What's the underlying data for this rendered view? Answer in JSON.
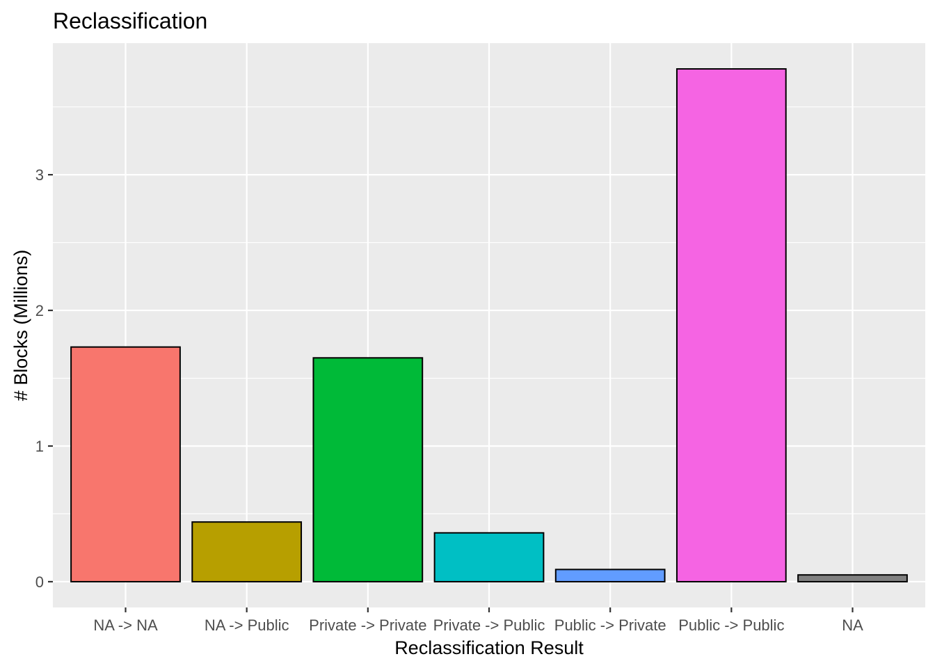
{
  "chart_data": {
    "type": "bar",
    "title": "Reclassification",
    "xlabel": "Reclassification Result",
    "ylabel": "# Blocks (Millions)",
    "categories": [
      "NA -> NA",
      "NA -> Public",
      "Private -> Private",
      "Private -> Public",
      "Public -> Private",
      "Public -> Public",
      "NA"
    ],
    "values": [
      1.73,
      0.44,
      1.65,
      0.36,
      0.09,
      3.78,
      0.05
    ],
    "colors": [
      "#F8766D",
      "#B79F00",
      "#00BA38",
      "#00BFC4",
      "#619CFF",
      "#F564E3",
      "#808080"
    ],
    "ylim": [
      -0.19,
      3.97
    ],
    "yticks": [
      0,
      1,
      2,
      3
    ],
    "grid": true,
    "legend": "none"
  }
}
